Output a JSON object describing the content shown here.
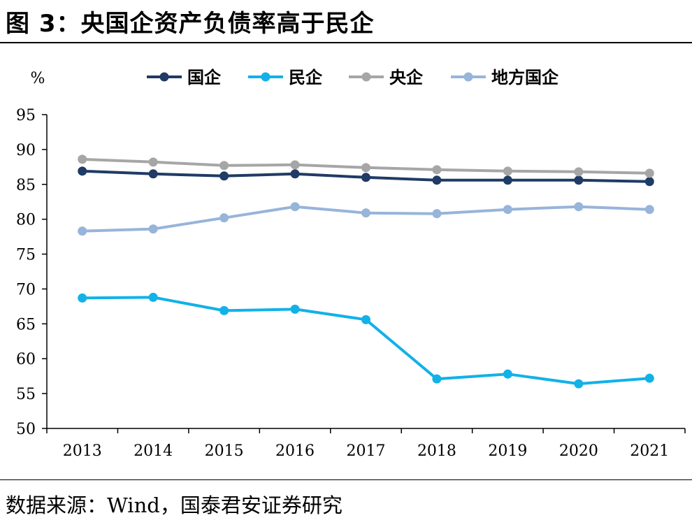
{
  "figure": {
    "title": "图 3：央国企资产负债率高于民企",
    "source": "数据来源：Wind，国泰君安证券研究"
  },
  "chart_data": {
    "type": "line",
    "title": "",
    "xlabel": "",
    "ylabel": "%",
    "ylim": [
      50,
      95
    ],
    "yticks": [
      50,
      55,
      60,
      65,
      70,
      75,
      80,
      85,
      90,
      95
    ],
    "grid": false,
    "legend_position": "top",
    "categories": [
      "2013",
      "2014",
      "2015",
      "2016",
      "2017",
      "2018",
      "2019",
      "2020",
      "2021"
    ],
    "series": [
      {
        "name": "国企",
        "color": "#1f3b66",
        "values": [
          86.9,
          86.5,
          86.2,
          86.5,
          86.0,
          85.6,
          85.6,
          85.6,
          85.4
        ]
      },
      {
        "name": "民企",
        "color": "#12b1e8",
        "values": [
          68.7,
          68.8,
          66.9,
          67.1,
          65.6,
          57.1,
          57.8,
          56.4,
          57.2
        ]
      },
      {
        "name": "央企",
        "color": "#a6a6a6",
        "values": [
          88.6,
          88.2,
          87.7,
          87.8,
          87.4,
          87.1,
          86.9,
          86.8,
          86.6
        ]
      },
      {
        "name": "地方国企",
        "color": "#97b4da",
        "values": [
          78.3,
          78.6,
          80.2,
          81.8,
          80.9,
          80.8,
          81.4,
          81.8,
          81.4
        ]
      }
    ]
  }
}
